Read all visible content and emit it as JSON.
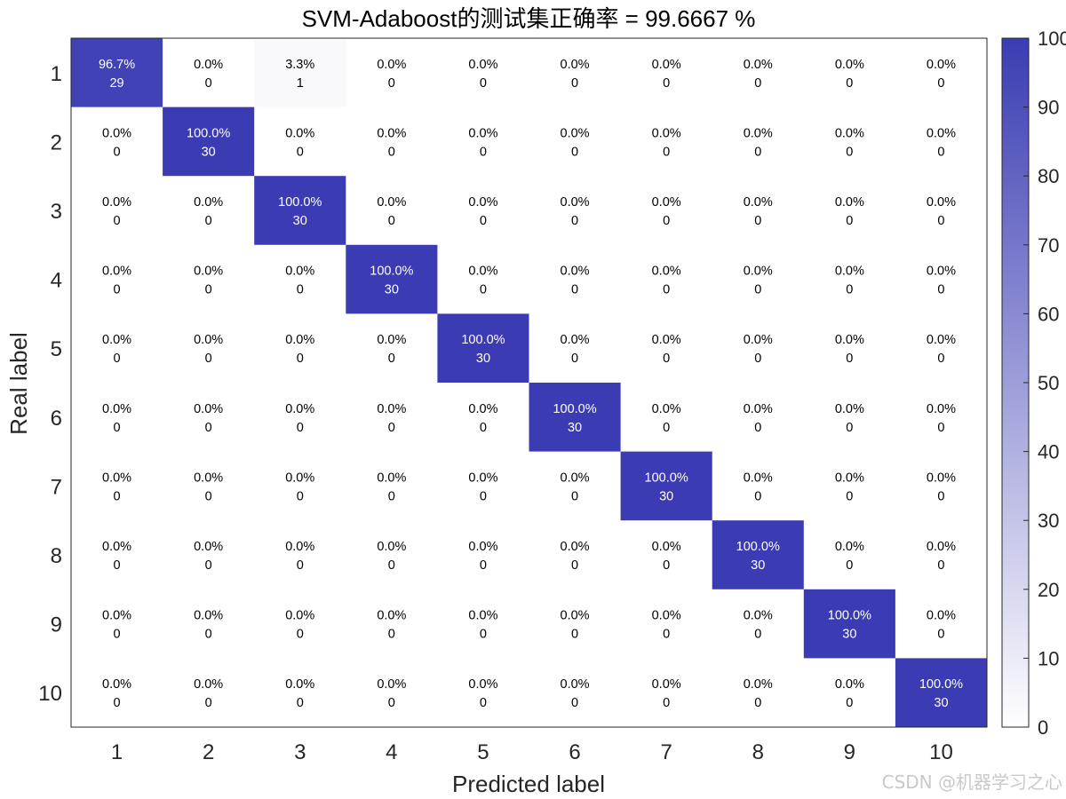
{
  "chart_data": {
    "type": "heatmap",
    "title": "SVM-Adaboost的测试集正确率 = 99.6667 %",
    "xlabel": "Predicted label",
    "ylabel": "Real label",
    "x_categories": [
      "1",
      "2",
      "3",
      "4",
      "5",
      "6",
      "7",
      "8",
      "9",
      "10"
    ],
    "y_categories": [
      "1",
      "2",
      "3",
      "4",
      "5",
      "6",
      "7",
      "8",
      "9",
      "10"
    ],
    "counts": [
      [
        29,
        0,
        1,
        0,
        0,
        0,
        0,
        0,
        0,
        0
      ],
      [
        0,
        30,
        0,
        0,
        0,
        0,
        0,
        0,
        0,
        0
      ],
      [
        0,
        0,
        30,
        0,
        0,
        0,
        0,
        0,
        0,
        0
      ],
      [
        0,
        0,
        0,
        30,
        0,
        0,
        0,
        0,
        0,
        0
      ],
      [
        0,
        0,
        0,
        0,
        30,
        0,
        0,
        0,
        0,
        0
      ],
      [
        0,
        0,
        0,
        0,
        0,
        30,
        0,
        0,
        0,
        0
      ],
      [
        0,
        0,
        0,
        0,
        0,
        0,
        30,
        0,
        0,
        0
      ],
      [
        0,
        0,
        0,
        0,
        0,
        0,
        0,
        30,
        0,
        0
      ],
      [
        0,
        0,
        0,
        0,
        0,
        0,
        0,
        0,
        30,
        0
      ],
      [
        0,
        0,
        0,
        0,
        0,
        0,
        0,
        0,
        0,
        30
      ]
    ],
    "percents": [
      [
        "96.7%",
        "0.0%",
        "3.3%",
        "0.0%",
        "0.0%",
        "0.0%",
        "0.0%",
        "0.0%",
        "0.0%",
        "0.0%"
      ],
      [
        "0.0%",
        "100.0%",
        "0.0%",
        "0.0%",
        "0.0%",
        "0.0%",
        "0.0%",
        "0.0%",
        "0.0%",
        "0.0%"
      ],
      [
        "0.0%",
        "0.0%",
        "100.0%",
        "0.0%",
        "0.0%",
        "0.0%",
        "0.0%",
        "0.0%",
        "0.0%",
        "0.0%"
      ],
      [
        "0.0%",
        "0.0%",
        "0.0%",
        "100.0%",
        "0.0%",
        "0.0%",
        "0.0%",
        "0.0%",
        "0.0%",
        "0.0%"
      ],
      [
        "0.0%",
        "0.0%",
        "0.0%",
        "0.0%",
        "100.0%",
        "0.0%",
        "0.0%",
        "0.0%",
        "0.0%",
        "0.0%"
      ],
      [
        "0.0%",
        "0.0%",
        "0.0%",
        "0.0%",
        "0.0%",
        "100.0%",
        "0.0%",
        "0.0%",
        "0.0%",
        "0.0%"
      ],
      [
        "0.0%",
        "0.0%",
        "0.0%",
        "0.0%",
        "0.0%",
        "0.0%",
        "100.0%",
        "0.0%",
        "0.0%",
        "0.0%"
      ],
      [
        "0.0%",
        "0.0%",
        "0.0%",
        "0.0%",
        "0.0%",
        "0.0%",
        "0.0%",
        "100.0%",
        "0.0%",
        "0.0%"
      ],
      [
        "0.0%",
        "0.0%",
        "0.0%",
        "0.0%",
        "0.0%",
        "0.0%",
        "0.0%",
        "0.0%",
        "100.0%",
        "0.0%"
      ],
      [
        "0.0%",
        "0.0%",
        "0.0%",
        "0.0%",
        "0.0%",
        "0.0%",
        "0.0%",
        "0.0%",
        "0.0%",
        "100.0%"
      ]
    ],
    "percent_values": [
      [
        96.7,
        0,
        3.3,
        0,
        0,
        0,
        0,
        0,
        0,
        0
      ],
      [
        0,
        100,
        0,
        0,
        0,
        0,
        0,
        0,
        0,
        0
      ],
      [
        0,
        0,
        100,
        0,
        0,
        0,
        0,
        0,
        0,
        0
      ],
      [
        0,
        0,
        0,
        100,
        0,
        0,
        0,
        0,
        0,
        0
      ],
      [
        0,
        0,
        0,
        0,
        100,
        0,
        0,
        0,
        0,
        0
      ],
      [
        0,
        0,
        0,
        0,
        0,
        100,
        0,
        0,
        0,
        0
      ],
      [
        0,
        0,
        0,
        0,
        0,
        0,
        100,
        0,
        0,
        0
      ],
      [
        0,
        0,
        0,
        0,
        0,
        0,
        0,
        100,
        0,
        0
      ],
      [
        0,
        0,
        0,
        0,
        0,
        0,
        0,
        0,
        100,
        0
      ],
      [
        0,
        0,
        0,
        0,
        0,
        0,
        0,
        0,
        0,
        100
      ]
    ],
    "colorbar": {
      "range": [
        0,
        100
      ],
      "ticks": [
        "0",
        "10",
        "20",
        "30",
        "40",
        "50",
        "60",
        "70",
        "80",
        "90",
        "100"
      ],
      "low_color": "#ffffff",
      "high_color": "#3b3cb3"
    },
    "grid": false,
    "legend": "none"
  },
  "watermark": "CSDN @机器学习之心"
}
